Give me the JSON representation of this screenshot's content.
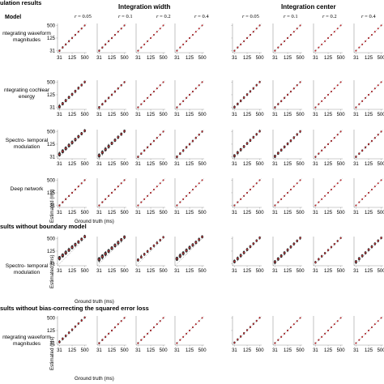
{
  "sections": [
    {
      "title": "ulation results"
    },
    {
      "title": "sults without boundary model"
    },
    {
      "title": "sults without bias-correcting the squared error loss"
    }
  ],
  "groups": [
    {
      "title": "Integration width"
    },
    {
      "title": "Integration center"
    }
  ],
  "model_header": "Model",
  "r_symbol": "r",
  "r_values": [
    "= 0.05",
    "= 0.1",
    "= 0.2",
    "= 0.4"
  ],
  "rows": [
    {
      "label": "ntegrating waveform magnitudes"
    },
    {
      "label": "ntegrating cochlear energy"
    },
    {
      "label": "Spectro- temporal modulation"
    },
    {
      "label": "Deep network"
    },
    {
      "label": "Spectro- temporal modulation"
    },
    {
      "label": "ntegrating waveform magnitudes"
    }
  ],
  "y_ticks": [
    "500",
    "125",
    "31"
  ],
  "x_ticks": [
    "31",
    "125",
    "500"
  ],
  "ylabel": "Estimated (ms)",
  "xlabel": "Ground truth (ms)",
  "colors": {
    "dots": "#111111",
    "median": "#d1242a",
    "diag": "#888888",
    "axis": "#9a9a9a"
  },
  "chart_data": {
    "type": "scatter",
    "xlabel": "Ground truth (ms)",
    "ylabel": "Estimated (ms)",
    "x_scale": "log2",
    "y_scale": "log2",
    "xlim": [
      25,
      620
    ],
    "ylim": [
      25,
      620
    ],
    "x": [
      31,
      44,
      62,
      88,
      125,
      177,
      250,
      354,
      500
    ],
    "spread": [
      [
        0.35,
        0.3,
        0.25,
        0.2,
        0.1,
        0.1,
        0.1,
        0.1
      ],
      [
        0.9,
        0.5,
        0.4,
        0.4,
        0.15,
        0.15,
        0.15,
        0.15
      ],
      [
        1.2,
        1.0,
        0.9,
        0.8,
        0.25,
        0.3,
        0.3,
        0.35
      ],
      [
        0.3,
        0.25,
        0.2,
        0.2,
        0.1,
        0.1,
        0.1,
        0.1
      ],
      [
        1.3,
        1.2,
        1.1,
        1.0,
        0.5,
        0.6,
        0.7,
        0.8
      ],
      [
        0.6,
        0.35,
        0.25,
        0.2,
        0.15,
        0.12,
        0.1,
        0.1
      ]
    ],
    "bias": [
      [
        0,
        0,
        0,
        0,
        0,
        0,
        0,
        0
      ],
      [
        0.1,
        0,
        0,
        0,
        0,
        0,
        0,
        0
      ],
      [
        0.4,
        0.3,
        0.2,
        0.1,
        0,
        0,
        0,
        0
      ],
      [
        0,
        0,
        0,
        0,
        0,
        0,
        0,
        0
      ],
      [
        0.9,
        0.8,
        0.7,
        0.6,
        0.6,
        0.7,
        0.8,
        0.9
      ],
      [
        0.2,
        0.1,
        0,
        0,
        0,
        0,
        0,
        0
      ]
    ]
  }
}
